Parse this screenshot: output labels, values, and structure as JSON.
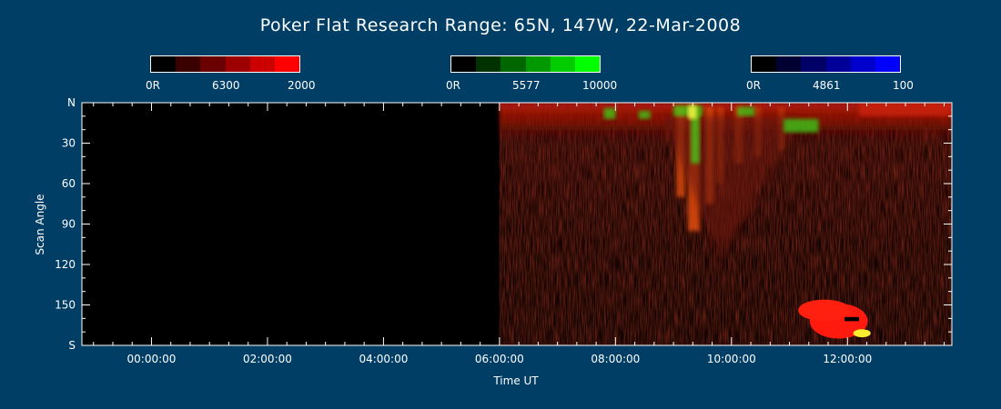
{
  "title": "Poker Flat Research Range: 65N, 147W, 22-Mar-2008",
  "colorbars": [
    {
      "min_label": "0R",
      "mid_label": "6300",
      "max_label": "2000",
      "colors": [
        "#000000",
        "#3a0000",
        "#6b0000",
        "#9c0000",
        "#cd0000",
        "#ff0000"
      ]
    },
    {
      "min_label": "0R",
      "mid_label": "5577",
      "max_label": "10000",
      "colors": [
        "#000000",
        "#003200",
        "#006600",
        "#009900",
        "#00cc00",
        "#00ff00"
      ]
    },
    {
      "min_label": "0R",
      "mid_label": "4861",
      "max_label": "100",
      "colors": [
        "#000000",
        "#000033",
        "#000066",
        "#000099",
        "#0000cc",
        "#0000ff"
      ]
    }
  ],
  "chart_data": {
    "type": "heatmap",
    "title": "Poker Flat Research Range: 65N, 147W, 22-Mar-2008",
    "xlabel": "Time UT",
    "ylabel": "Scan Angle",
    "x_ticks": [
      "00:00:00",
      "02:00:00",
      "04:00:00",
      "06:00:00",
      "08:00:00",
      "10:00:00",
      "12:00:00"
    ],
    "x_tick_hours": [
      0,
      2,
      4,
      6,
      8,
      10,
      12
    ],
    "x_range_hours": [
      -1.2,
      13.8
    ],
    "y_ticks": [
      "N",
      "30",
      "60",
      "90",
      "120",
      "150",
      "S"
    ],
    "y_tick_values": [
      0,
      30,
      60,
      90,
      120,
      150,
      180
    ],
    "y_range": [
      0,
      180
    ],
    "data_start_hour": 6.0,
    "features": [
      {
        "channel": "6300",
        "hours": [
          6.0,
          13.8
        ],
        "angles": [
          0,
          30
        ],
        "level": "moderate"
      },
      {
        "channel": "6300",
        "hours": [
          9.0,
          9.8
        ],
        "angles": [
          5,
          120
        ],
        "level": "bright"
      },
      {
        "channel": "5577",
        "hours": [
          9.2,
          9.4
        ],
        "angles": [
          5,
          50
        ],
        "level": "bright"
      },
      {
        "channel": "5577",
        "hours": [
          7.5,
          11.5
        ],
        "angles": [
          3,
          25
        ],
        "level": "patchy"
      },
      {
        "channel": "6300",
        "hours": [
          11.4,
          12.3
        ],
        "angles": [
          150,
          175
        ],
        "level": "saturated"
      }
    ]
  }
}
